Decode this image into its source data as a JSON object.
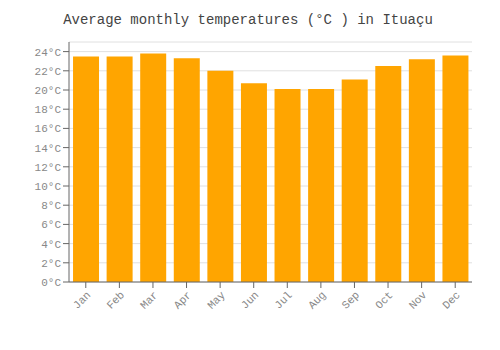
{
  "chart_data": {
    "type": "bar",
    "title": "Average monthly temperatures (°C ) in Ituaçu",
    "categories": [
      "Jan",
      "Feb",
      "Mar",
      "Apr",
      "May",
      "Jun",
      "Jul",
      "Aug",
      "Sep",
      "Oct",
      "Nov",
      "Dec"
    ],
    "values": [
      23.5,
      23.5,
      23.8,
      23.3,
      22.0,
      20.7,
      20.1,
      20.1,
      21.1,
      22.5,
      23.2,
      23.6
    ],
    "color": "#FFA500",
    "ylim": [
      0,
      25
    ],
    "yticks": [
      {
        "value": 0,
        "label": "0°C"
      },
      {
        "value": 2,
        "label": "2°C"
      },
      {
        "value": 4,
        "label": "4°C"
      },
      {
        "value": 6,
        "label": "6°C"
      },
      {
        "value": 8,
        "label": "8°C"
      },
      {
        "value": 10,
        "label": "10°C"
      },
      {
        "value": 12,
        "label": "12°C"
      },
      {
        "value": 14,
        "label": "14°C"
      },
      {
        "value": 16,
        "label": "16°C"
      },
      {
        "value": 18,
        "label": "18°C"
      },
      {
        "value": 20,
        "label": "20°C"
      },
      {
        "value": 22,
        "label": "22°C"
      },
      {
        "value": 24,
        "label": "24°C"
      }
    ],
    "grid": true
  }
}
